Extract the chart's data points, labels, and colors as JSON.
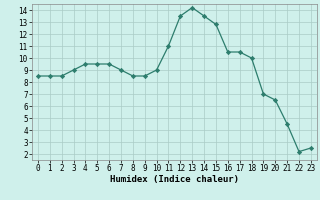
{
  "x": [
    0,
    1,
    2,
    3,
    4,
    5,
    6,
    7,
    8,
    9,
    10,
    11,
    12,
    13,
    14,
    15,
    16,
    17,
    18,
    19,
    20,
    21,
    22,
    23
  ],
  "y": [
    8.5,
    8.5,
    8.5,
    9.0,
    9.5,
    9.5,
    9.5,
    9.0,
    8.5,
    8.5,
    9.0,
    11.0,
    13.5,
    14.2,
    13.5,
    12.8,
    10.5,
    10.5,
    10.0,
    7.0,
    6.5,
    4.5,
    2.2,
    2.5
  ],
  "line_color": "#2d7d6d",
  "marker": "D",
  "marker_size": 2.2,
  "bg_color": "#cff0eb",
  "grid_color": "#aaccc6",
  "xlabel": "Humidex (Indice chaleur)",
  "xlim": [
    -0.5,
    23.5
  ],
  "ylim": [
    1.5,
    14.5
  ],
  "yticks": [
    2,
    3,
    4,
    5,
    6,
    7,
    8,
    9,
    10,
    11,
    12,
    13,
    14
  ],
  "xticks": [
    0,
    1,
    2,
    3,
    4,
    5,
    6,
    7,
    8,
    9,
    10,
    11,
    12,
    13,
    14,
    15,
    16,
    17,
    18,
    19,
    20,
    21,
    22,
    23
  ],
  "axis_fontsize": 6.5,
  "tick_fontsize": 5.5
}
